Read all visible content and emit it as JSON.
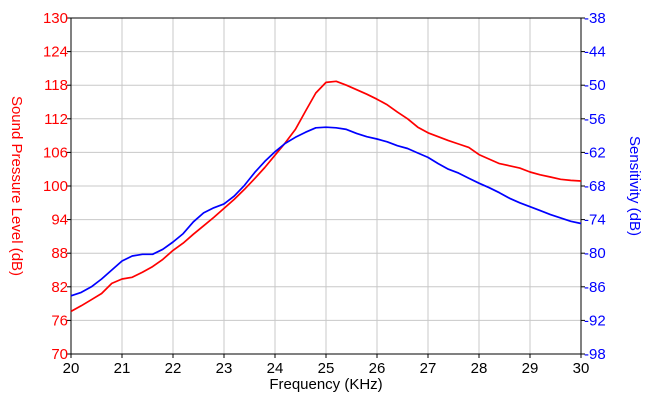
{
  "chart_data": {
    "type": "line",
    "xlabel": "Frequency (KHz)",
    "ylabel_left": "Sound Pressure Level (dB)",
    "ylabel_right": "Sensitivity (dB)",
    "xlim": [
      20,
      30
    ],
    "ylim_left": [
      70,
      130
    ],
    "ylim_right": [
      -98,
      -38
    ],
    "x_ticks": [
      "20",
      "21",
      "22",
      "23",
      "24",
      "25",
      "26",
      "27",
      "28",
      "29",
      "30"
    ],
    "left_ticks": [
      "70",
      "76",
      "82",
      "88",
      "94",
      "100",
      "106",
      "112",
      "118",
      "124",
      "130"
    ],
    "right_ticks": [
      "-98",
      "-92",
      "-86",
      "-80",
      "-74",
      "-68",
      "-62",
      "-56",
      "-50",
      "-44",
      "-38"
    ],
    "grid": true,
    "colors": {
      "left": "#ff0000",
      "right": "#0000ff",
      "grid": "#c8c8c8",
      "axis": "#000000"
    },
    "series": [
      {
        "name": "Sound Pressure Level (dB)",
        "axis": "left",
        "color": "#ff0000",
        "x": [
          20,
          20.2,
          20.4,
          20.6,
          20.8,
          21,
          21.2,
          21.4,
          21.6,
          21.8,
          22,
          22.2,
          22.4,
          22.6,
          22.8,
          23,
          23.2,
          23.4,
          23.6,
          23.8,
          24,
          24.2,
          24.4,
          24.6,
          24.8,
          25,
          25.2,
          25.4,
          25.6,
          25.8,
          26,
          26.2,
          26.4,
          26.6,
          26.8,
          27,
          27.2,
          27.4,
          27.6,
          27.8,
          28,
          28.2,
          28.4,
          28.6,
          28.8,
          29,
          29.2,
          29.4,
          29.6,
          29.8,
          30
        ],
        "y": [
          77.6,
          78.6,
          79.7,
          80.8,
          82.6,
          83.4,
          83.7,
          84.6,
          85.6,
          86.9,
          88.5,
          89.8,
          91.4,
          92.9,
          94.4,
          96,
          97.6,
          99.4,
          101.3,
          103.3,
          105.5,
          107.7,
          110.1,
          113.4,
          116.6,
          118.5,
          118.7,
          118,
          117.2,
          116.4,
          115.5,
          114.5,
          113.2,
          112,
          110.5,
          109.5,
          108.8,
          108.1,
          107.5,
          106.9,
          105.6,
          104.8,
          104,
          103.6,
          103.2,
          102.5,
          102,
          101.6,
          101.2,
          101,
          100.9
        ]
      },
      {
        "name": "Sensitivity (dB)",
        "axis": "right",
        "color": "#0000ff",
        "x": [
          20,
          20.2,
          20.4,
          20.6,
          20.8,
          21,
          21.2,
          21.4,
          21.6,
          21.8,
          22,
          22.2,
          22.4,
          22.6,
          22.8,
          23,
          23.2,
          23.4,
          23.6,
          23.8,
          24,
          24.2,
          24.4,
          24.6,
          24.8,
          25,
          25.2,
          25.4,
          25.6,
          25.8,
          26,
          26.2,
          26.4,
          26.6,
          26.8,
          27,
          27.2,
          27.4,
          27.6,
          27.8,
          28,
          28.2,
          28.4,
          28.6,
          28.8,
          29,
          29.2,
          29.4,
          29.6,
          29.8,
          30
        ],
        "y": [
          -87.6,
          -87,
          -86,
          -84.6,
          -83,
          -81.4,
          -80.5,
          -80.2,
          -80.2,
          -79.3,
          -78,
          -76.5,
          -74.4,
          -72.8,
          -71.9,
          -71.2,
          -69.8,
          -67.9,
          -65.6,
          -63.6,
          -61.9,
          -60.4,
          -59.3,
          -58.4,
          -57.6,
          -57.5,
          -57.6,
          -57.9,
          -58.6,
          -59.2,
          -59.6,
          -60.1,
          -60.8,
          -61.3,
          -62.1,
          -62.9,
          -64,
          -65,
          -65.7,
          -66.6,
          -67.5,
          -68.3,
          -69.2,
          -70.2,
          -71,
          -71.7,
          -72.4,
          -73.1,
          -73.7,
          -74.3,
          -74.7
        ]
      }
    ]
  }
}
